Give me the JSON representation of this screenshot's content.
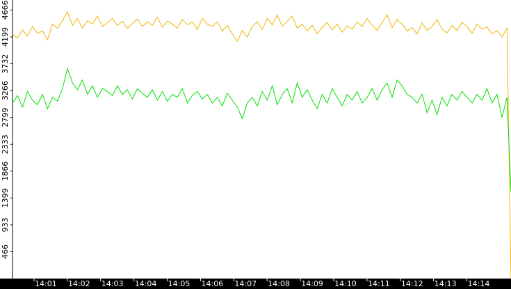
{
  "chart_data": {
    "type": "line",
    "x": [
      0,
      0.15,
      0.3,
      0.45,
      0.6,
      0.75,
      0.9,
      1.05,
      1.2,
      1.35,
      1.5,
      1.65,
      1.8,
      1.95,
      2.1,
      2.25,
      2.4,
      2.55,
      2.7,
      2.85,
      3,
      3.15,
      3.3,
      3.45,
      3.6,
      3.75,
      3.9,
      4.05,
      4.2,
      4.35,
      4.5,
      4.65,
      4.8,
      4.95,
      5.1,
      5.25,
      5.4,
      5.55,
      5.7,
      5.85,
      6,
      6.15,
      6.3,
      6.45,
      6.6,
      6.75,
      6.9,
      7.05,
      7.2,
      7.35,
      7.5,
      7.65,
      7.8,
      7.95,
      8.1,
      8.25,
      8.4,
      8.55,
      8.7,
      8.85,
      9,
      9.15,
      9.3,
      9.45,
      9.6,
      9.75,
      9.9,
      10.05,
      10.2,
      10.35,
      10.5,
      10.65,
      10.8,
      10.95,
      11.1,
      11.25,
      11.4,
      11.55,
      11.7,
      11.85,
      12,
      12.15,
      12.3,
      12.45,
      12.6,
      12.75,
      12.9,
      13.05,
      13.2,
      13.35,
      13.5,
      13.65,
      13.8,
      13.95,
      14.1,
      14.25,
      14.4,
      14.55,
      14.7,
      14.85,
      14.97
    ],
    "series": [
      {
        "color": "#f0b400",
        "values": [
          4250,
          4180,
          4320,
          4210,
          4380,
          4260,
          4300,
          4150,
          4420,
          4350,
          4480,
          4640,
          4400,
          4520,
          4350,
          4480,
          4420,
          4560,
          4380,
          4450,
          4520,
          4400,
          4470,
          4350,
          4430,
          4510,
          4380,
          4460,
          4400,
          4540,
          4370,
          4480,
          4420,
          4350,
          4500,
          4410,
          4460,
          4330,
          4520,
          4420,
          4380,
          4460,
          4300,
          4400,
          4250,
          4120,
          4310,
          4200,
          4380,
          4460,
          4330,
          4520,
          4410,
          4580,
          4380,
          4470,
          4560,
          4350,
          4420,
          4300,
          4400,
          4250,
          4370,
          4450,
          4320,
          4420,
          4280,
          4390,
          4330,
          4460,
          4380,
          4520,
          4400,
          4310,
          4450,
          4580,
          4360,
          4500,
          4420,
          4300,
          4360,
          4250,
          4440,
          4310,
          4380,
          4500,
          4330,
          4270,
          4400,
          4310,
          4450,
          4380,
          4260,
          4420,
          4330,
          4370,
          4250,
          4310,
          4200,
          4350,
          0
        ]
      },
      {
        "color": "#00e000",
        "values": [
          3050,
          3180,
          2980,
          3250,
          3100,
          3020,
          3200,
          2950,
          3150,
          3080,
          3300,
          3650,
          3400,
          3280,
          3450,
          3200,
          3350,
          3150,
          3300,
          3250,
          3180,
          3350,
          3200,
          3280,
          3120,
          3300,
          3220,
          3150,
          3280,
          3100,
          3250,
          3080,
          3200,
          3150,
          3300,
          3050,
          3180,
          3250,
          3120,
          3200,
          3050,
          3150,
          3000,
          3220,
          3100,
          2980,
          2780,
          3050,
          3150,
          3000,
          3250,
          3100,
          3350,
          3020,
          3200,
          3300,
          3050,
          3400,
          3150,
          3280,
          3100,
          2950,
          3200,
          3050,
          3300,
          3150,
          3000,
          3200,
          3100,
          3250,
          3050,
          3150,
          3300,
          3100,
          3280,
          3400,
          3150,
          3450,
          3350,
          3200,
          3150,
          3050,
          3200,
          2880,
          3100,
          2850,
          3150,
          3000,
          3200,
          3100,
          3250,
          3150,
          3050,
          3200,
          3100,
          3300,
          3050,
          3200,
          2800,
          3150,
          1500
        ]
      }
    ],
    "xlim": [
      0,
      14.97
    ],
    "xticks": [
      {
        "value": 1,
        "label": "14:01"
      },
      {
        "value": 2,
        "label": "14:02"
      },
      {
        "value": 3,
        "label": "14:03"
      },
      {
        "value": 4,
        "label": "14:04"
      },
      {
        "value": 5,
        "label": "14:05"
      },
      {
        "value": 6,
        "label": "14:06"
      },
      {
        "value": 7,
        "label": "14:07"
      },
      {
        "value": 8,
        "label": "14:08"
      },
      {
        "value": 9,
        "label": "14:09"
      },
      {
        "value": 10,
        "label": "14:10"
      },
      {
        "value": 11,
        "label": "14:11"
      },
      {
        "value": 12,
        "label": "14:12"
      },
      {
        "value": 13,
        "label": "14:13"
      },
      {
        "value": 14,
        "label": "14:14"
      }
    ],
    "ylim": [
      0,
      4840
    ],
    "yticks": [
      466,
      933,
      1399,
      1866,
      2333,
      2799,
      3266,
      3732,
      4199,
      4666
    ]
  }
}
